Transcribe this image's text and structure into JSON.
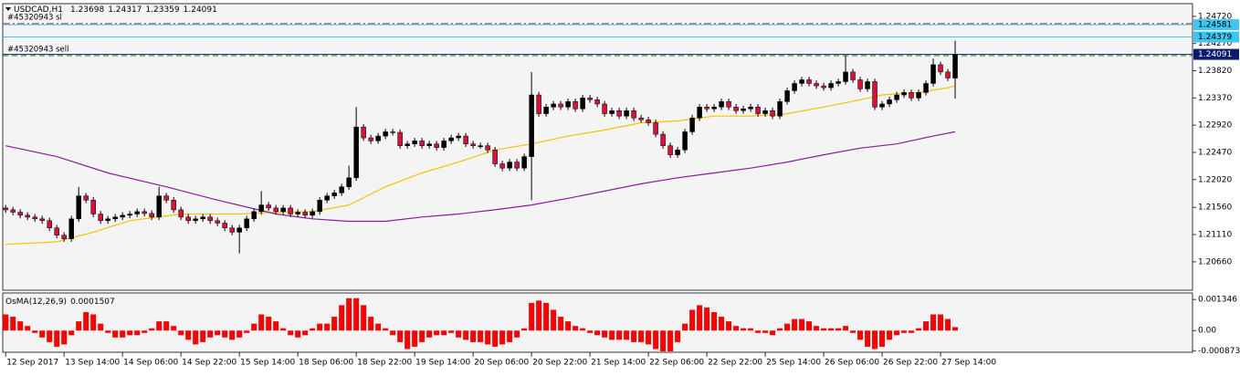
{
  "chart_data": [
    {
      "type": "candlestick",
      "title": "USDCAD,H1",
      "xlim": [
        -0.4,
        162.5
      ],
      "ylim": [
        1.2019,
        1.2493
      ],
      "yticks": [
        {
          "value": 1.2472,
          "label": "1.24720"
        },
        {
          "value": 1.2427,
          "label": "1.24270"
        },
        {
          "value": 1.2382,
          "label": "1.23820"
        },
        {
          "value": 1.2337,
          "label": "1.23370"
        },
        {
          "value": 1.2292,
          "label": "1.22920"
        },
        {
          "value": 1.2247,
          "label": "1.22470"
        },
        {
          "value": 1.2202,
          "label": "1.22020"
        },
        {
          "value": 1.2156,
          "label": "1.21560"
        },
        {
          "value": 1.2111,
          "label": "1.21110"
        },
        {
          "value": 1.2066,
          "label": "1.20660"
        }
      ],
      "up_color": "#000000",
      "down_color": "#d2143a",
      "open": [
        1.2155,
        1.2152,
        1.2148,
        1.2143,
        1.214,
        1.2137,
        1.2134,
        1.2122,
        1.211,
        1.2104,
        1.2137,
        1.2175,
        1.2168,
        1.2145,
        1.2134,
        1.2137,
        1.214,
        1.2143,
        1.2145,
        1.2149,
        1.2146,
        1.214,
        1.2175,
        1.2168,
        1.2152,
        1.214,
        1.2134,
        1.2137,
        1.214,
        1.2134,
        1.213,
        1.2122,
        1.2115,
        1.2122,
        1.2137,
        1.2149,
        1.216,
        1.2155,
        1.2149,
        1.2155,
        1.2145,
        1.2148,
        1.2143,
        1.2149,
        1.2168,
        1.2175,
        1.218,
        1.219,
        1.2205,
        1.2289,
        1.2271,
        1.2266,
        1.2274,
        1.2281,
        1.228,
        1.2258,
        1.2261,
        1.2266,
        1.2258,
        1.2261,
        1.2255,
        1.2266,
        1.2271,
        1.2274,
        1.2261,
        1.2258,
        1.2258,
        1.2251,
        1.2228,
        1.2221,
        1.2231,
        1.2221,
        1.224,
        1.2342,
        1.2311,
        1.2322,
        1.2327,
        1.2322,
        1.2331,
        1.2319,
        1.2337,
        1.2334,
        1.2327,
        1.2311,
        1.2316,
        1.2307,
        1.2316,
        1.2304,
        1.2301,
        1.2296,
        1.2277,
        1.2258,
        1.2243,
        1.2251,
        1.2281,
        1.2304,
        1.2322,
        1.2319,
        1.2322,
        1.2331,
        1.2322,
        1.2316,
        1.2319,
        1.2322,
        1.2311,
        1.2316,
        1.2307,
        1.2331,
        1.2349,
        1.2361,
        1.2367,
        1.2361,
        1.2357,
        1.2354,
        1.2361,
        1.2364,
        1.238,
        1.2367,
        1.2352,
        1.2364,
        1.2322,
        1.2327,
        1.2334,
        1.2342,
        1.2346,
        1.2337,
        1.2346,
        1.2361,
        1.2392,
        1.238,
        1.23698
      ],
      "high": [
        1.216,
        1.2157,
        1.2153,
        1.2148,
        1.2145,
        1.2142,
        1.2139,
        1.2127,
        1.2115,
        1.2142,
        1.219,
        1.218,
        1.2173,
        1.215,
        1.2142,
        1.2145,
        1.2148,
        1.215,
        1.2154,
        1.2154,
        1.2151,
        1.219,
        1.218,
        1.2173,
        1.2157,
        1.2145,
        1.2142,
        1.2145,
        1.2145,
        1.2139,
        1.2135,
        1.2127,
        1.2127,
        1.2142,
        1.2154,
        1.2183,
        1.2165,
        1.216,
        1.216,
        1.216,
        1.2153,
        1.2153,
        1.2154,
        1.2173,
        1.218,
        1.2185,
        1.2195,
        1.2225,
        1.2322,
        1.2294,
        1.2276,
        1.2279,
        1.2286,
        1.2286,
        1.2285,
        1.2266,
        1.2271,
        1.2271,
        1.2266,
        1.2266,
        1.2271,
        1.2276,
        1.2279,
        1.2279,
        1.2266,
        1.2263,
        1.2263,
        1.2256,
        1.2233,
        1.2236,
        1.2236,
        1.2245,
        1.238,
        1.2347,
        1.2327,
        1.2332,
        1.2332,
        1.2336,
        1.2336,
        1.2342,
        1.2342,
        1.2339,
        1.2332,
        1.2321,
        1.2321,
        1.2321,
        1.2321,
        1.2309,
        1.2306,
        1.2301,
        1.2282,
        1.2263,
        1.2256,
        1.2286,
        1.2309,
        1.2327,
        1.2327,
        1.2327,
        1.2336,
        1.2336,
        1.2327,
        1.2324,
        1.2327,
        1.2327,
        1.2321,
        1.2321,
        1.2336,
        1.2354,
        1.2366,
        1.2372,
        1.2372,
        1.2366,
        1.2362,
        1.2366,
        1.2369,
        1.2407,
        1.2385,
        1.2372,
        1.2369,
        1.2369,
        1.2332,
        1.2339,
        1.2347,
        1.2351,
        1.2351,
        1.2351,
        1.2366,
        1.2402,
        1.2397,
        1.2385,
        1.24317
      ],
      "low": [
        1.2147,
        1.2143,
        1.2138,
        1.2135,
        1.2132,
        1.2129,
        1.2117,
        1.2105,
        1.2099,
        1.2099,
        1.2132,
        1.2163,
        1.214,
        1.2129,
        1.2129,
        1.2132,
        1.2135,
        1.2138,
        1.214,
        1.2141,
        1.2135,
        1.2135,
        1.2163,
        1.2147,
        1.2135,
        1.2129,
        1.2129,
        1.2132,
        1.2129,
        1.2125,
        1.2117,
        1.211,
        1.208,
        1.2117,
        1.2132,
        1.2144,
        1.215,
        1.2144,
        1.2144,
        1.214,
        1.214,
        1.2138,
        1.2138,
        1.2144,
        1.2163,
        1.217,
        1.2175,
        1.2185,
        1.22,
        1.2266,
        1.2261,
        1.2261,
        1.2269,
        1.2275,
        1.2253,
        1.2253,
        1.2256,
        1.2253,
        1.2253,
        1.225,
        1.225,
        1.2261,
        1.2266,
        1.2256,
        1.2253,
        1.2253,
        1.2246,
        1.2223,
        1.2216,
        1.2216,
        1.2216,
        1.2216,
        1.2168,
        1.2306,
        1.2306,
        1.2317,
        1.2317,
        1.2317,
        1.2314,
        1.2314,
        1.2329,
        1.2322,
        1.2306,
        1.2306,
        1.2302,
        1.2302,
        1.2299,
        1.2296,
        1.2291,
        1.2272,
        1.2253,
        1.2238,
        1.2238,
        1.2246,
        1.2276,
        1.2299,
        1.2314,
        1.2314,
        1.2317,
        1.2317,
        1.2311,
        1.2311,
        1.2314,
        1.2306,
        1.2306,
        1.2302,
        1.2302,
        1.2326,
        1.2344,
        1.2356,
        1.2356,
        1.2352,
        1.2349,
        1.2349,
        1.2356,
        1.2359,
        1.2362,
        1.2347,
        1.2347,
        1.2317,
        1.2317,
        1.2322,
        1.2329,
        1.2337,
        1.2332,
        1.2332,
        1.2341,
        1.2356,
        1.2375,
        1.2365,
        1.23359
      ],
      "close": [
        1.2152,
        1.2148,
        1.2143,
        1.214,
        1.2137,
        1.2134,
        1.2122,
        1.211,
        1.2104,
        1.2137,
        1.2175,
        1.2168,
        1.2145,
        1.2134,
        1.2137,
        1.214,
        1.2143,
        1.2145,
        1.2149,
        1.2146,
        1.214,
        1.2175,
        1.2168,
        1.2152,
        1.214,
        1.2134,
        1.2137,
        1.214,
        1.2134,
        1.213,
        1.2122,
        1.2115,
        1.2122,
        1.2137,
        1.2149,
        1.216,
        1.2155,
        1.2149,
        1.2155,
        1.2145,
        1.2148,
        1.2143,
        1.2149,
        1.2168,
        1.2175,
        1.218,
        1.219,
        1.2205,
        1.2289,
        1.2271,
        1.2266,
        1.2274,
        1.2281,
        1.228,
        1.2258,
        1.2261,
        1.2266,
        1.2258,
        1.2261,
        1.2255,
        1.2266,
        1.2271,
        1.2274,
        1.2261,
        1.2258,
        1.2258,
        1.2251,
        1.2228,
        1.2221,
        1.2231,
        1.2221,
        1.224,
        1.2342,
        1.2311,
        1.2322,
        1.2327,
        1.2322,
        1.2331,
        1.2319,
        1.2337,
        1.2334,
        1.2327,
        1.2311,
        1.2316,
        1.2307,
        1.2316,
        1.2304,
        1.2301,
        1.2296,
        1.2277,
        1.2258,
        1.2243,
        1.2251,
        1.2281,
        1.2304,
        1.2322,
        1.2319,
        1.2322,
        1.2331,
        1.2322,
        1.2316,
        1.2319,
        1.2322,
        1.2311,
        1.2316,
        1.2307,
        1.2331,
        1.2349,
        1.2361,
        1.2367,
        1.2361,
        1.2357,
        1.2354,
        1.2361,
        1.2364,
        1.238,
        1.2367,
        1.2352,
        1.2364,
        1.2322,
        1.2327,
        1.2334,
        1.2342,
        1.2346,
        1.2337,
        1.2346,
        1.2361,
        1.2392,
        1.238,
        1.237,
        1.24091
      ],
      "lines": [
        {
          "color": "#f5c400",
          "x": [
            0,
            7,
            12,
            17,
            24,
            32,
            37,
            42,
            47,
            52,
            57,
            62,
            67,
            72,
            77,
            82,
            87,
            92,
            97,
            102,
            107,
            112,
            117,
            120,
            125,
            129,
            130
          ],
          "values": [
            1.2095,
            1.2099,
            1.2115,
            1.2134,
            1.2145,
            1.2145,
            1.2148,
            1.2149,
            1.216,
            1.219,
            1.2213,
            1.2231,
            1.2251,
            1.2261,
            1.2274,
            1.2284,
            1.2296,
            1.2299,
            1.2307,
            1.2307,
            1.2311,
            1.2322,
            1.2334,
            1.2342,
            1.2346,
            1.2354,
            1.2357
          ]
        },
        {
          "color": "#8b1c9c",
          "x": [
            0,
            7,
            14,
            22,
            29,
            37,
            42,
            47,
            52,
            57,
            62,
            67,
            72,
            77,
            82,
            87,
            92,
            97,
            102,
            107,
            112,
            117,
            122,
            127,
            130
          ],
          "values": [
            1.2258,
            1.224,
            1.2213,
            1.219,
            1.2168,
            1.2145,
            1.2137,
            1.2133,
            1.2133,
            1.214,
            1.2145,
            1.2152,
            1.216,
            1.2171,
            1.2183,
            1.2195,
            1.2205,
            1.2213,
            1.2221,
            1.2231,
            1.2243,
            1.2254,
            1.2261,
            1.2274,
            1.2281
          ]
        }
      ],
      "levels": [
        {
          "name": "#45320943 sl",
          "value": 1.246,
          "color": "#b22222",
          "style": "dashdot"
        },
        {
          "name": "#45320943 sell",
          "value": 1.2407,
          "color": "#119911",
          "style": "dash"
        }
      ],
      "price_lines": [
        {
          "value": 1.24581,
          "color": "#3ec6f0",
          "text_color": "#000000"
        },
        {
          "value": 1.24379,
          "color": "#3ec6f0",
          "text_color": "#000000"
        },
        {
          "value": 1.24091,
          "color": "#0a1a6e",
          "text_color": "#ffffff"
        }
      ]
    },
    {
      "type": "histogram",
      "title": "OsMA(12,26,9)",
      "color": "#ff0000",
      "xlim": [
        -0.4,
        162.5
      ],
      "ylim": [
        -0.00094,
        0.00163
      ],
      "yticks": [
        0.001346,
        {
          "value": 0,
          "label": "0.00"
        },
        -0.000873
      ],
      "xticks": [
        {
          "value": 0,
          "label": "12 Sep 2017"
        },
        {
          "value": 8,
          "label": "13 Sep 14:00"
        },
        {
          "value": 16,
          "label": "14 Sep 06:00"
        },
        {
          "value": 24,
          "label": "14 Sep 22:00"
        },
        {
          "value": 32,
          "label": "15 Sep 14:00"
        },
        {
          "value": 40,
          "label": "18 Sep 06:00"
        },
        {
          "value": 48,
          "label": "18 Sep 22:00"
        },
        {
          "value": 56,
          "label": "19 Sep 14:00"
        },
        {
          "value": 64,
          "label": "20 Sep 06:00"
        },
        {
          "value": 72,
          "label": "20 Sep 22:00"
        },
        {
          "value": 80,
          "label": "21 Sep 14:00"
        },
        {
          "value": 88,
          "label": "22 Sep 06:00"
        },
        {
          "value": 96,
          "label": "22 Sep 22:00"
        },
        {
          "value": 104,
          "label": "25 Sep 14:00"
        },
        {
          "value": 112,
          "label": "26 Sep 06:00"
        },
        {
          "value": 120,
          "label": "26 Sep 22:00"
        },
        {
          "value": 128,
          "label": "27 Sep 14:00"
        }
      ],
      "values": [
        0.0007,
        0.0006,
        0.0004,
        0.0002,
        -0.0001,
        -0.0003,
        -0.0005,
        -0.0007,
        -0.0006,
        -0.0002,
        0.0004,
        0.0008,
        0.0007,
        0.0003,
        -0.0001,
        -0.0003,
        -0.0003,
        -0.0002,
        -0.0002,
        -0.0001,
        0.0001,
        0.0004,
        0.0004,
        0.0002,
        -0.0002,
        -0.0004,
        -0.0006,
        -0.0005,
        -0.0003,
        -0.0002,
        -0.0003,
        -0.0004,
        -0.0003,
        -0.0001,
        0.0003,
        0.0007,
        0.0006,
        0.0004,
        0.0001,
        -0.0002,
        -0.0003,
        -0.0002,
        0.0001,
        0.0003,
        0.0003,
        0.0006,
        0.0011,
        0.0014,
        0.0014,
        0.0011,
        0.0006,
        0.0003,
        0.0001,
        -0.0002,
        -0.0005,
        -0.0008,
        -0.0007,
        -0.0005,
        -0.0003,
        -0.0002,
        -0.0002,
        -0.0001,
        -0.0003,
        -0.0004,
        -0.0005,
        -0.0005,
        -0.0006,
        -0.0007,
        -0.0006,
        -0.0005,
        -0.0003,
        0.0001,
        0.0012,
        0.0013,
        0.0012,
        0.0009,
        0.0006,
        0.0004,
        0.0002,
        0.0001,
        -0.0001,
        -0.0002,
        -0.0003,
        -0.0004,
        -0.0004,
        -0.0004,
        -0.0005,
        -0.0005,
        -0.0006,
        -0.0008,
        -0.0009,
        -0.0009,
        -0.0005,
        0.0003,
        0.0009,
        0.0011,
        0.001,
        0.0008,
        0.0006,
        0.0004,
        0.0002,
        0.0001,
        0.0001,
        -0.0001,
        -0.0001,
        -0.0002,
        0.0001,
        0.0003,
        0.0005,
        0.0005,
        0.0004,
        0.0002,
        0.0001,
        0.0001,
        0.0001,
        0.0002,
        -0.0001,
        -0.0004,
        -0.0007,
        -0.0008,
        -0.0007,
        -0.0004,
        -0.0002,
        -0.0001,
        -0.0001,
        0.0001,
        0.0004,
        0.0007,
        0.0007,
        0.0005,
        0.0001507
      ]
    }
  ]
}
